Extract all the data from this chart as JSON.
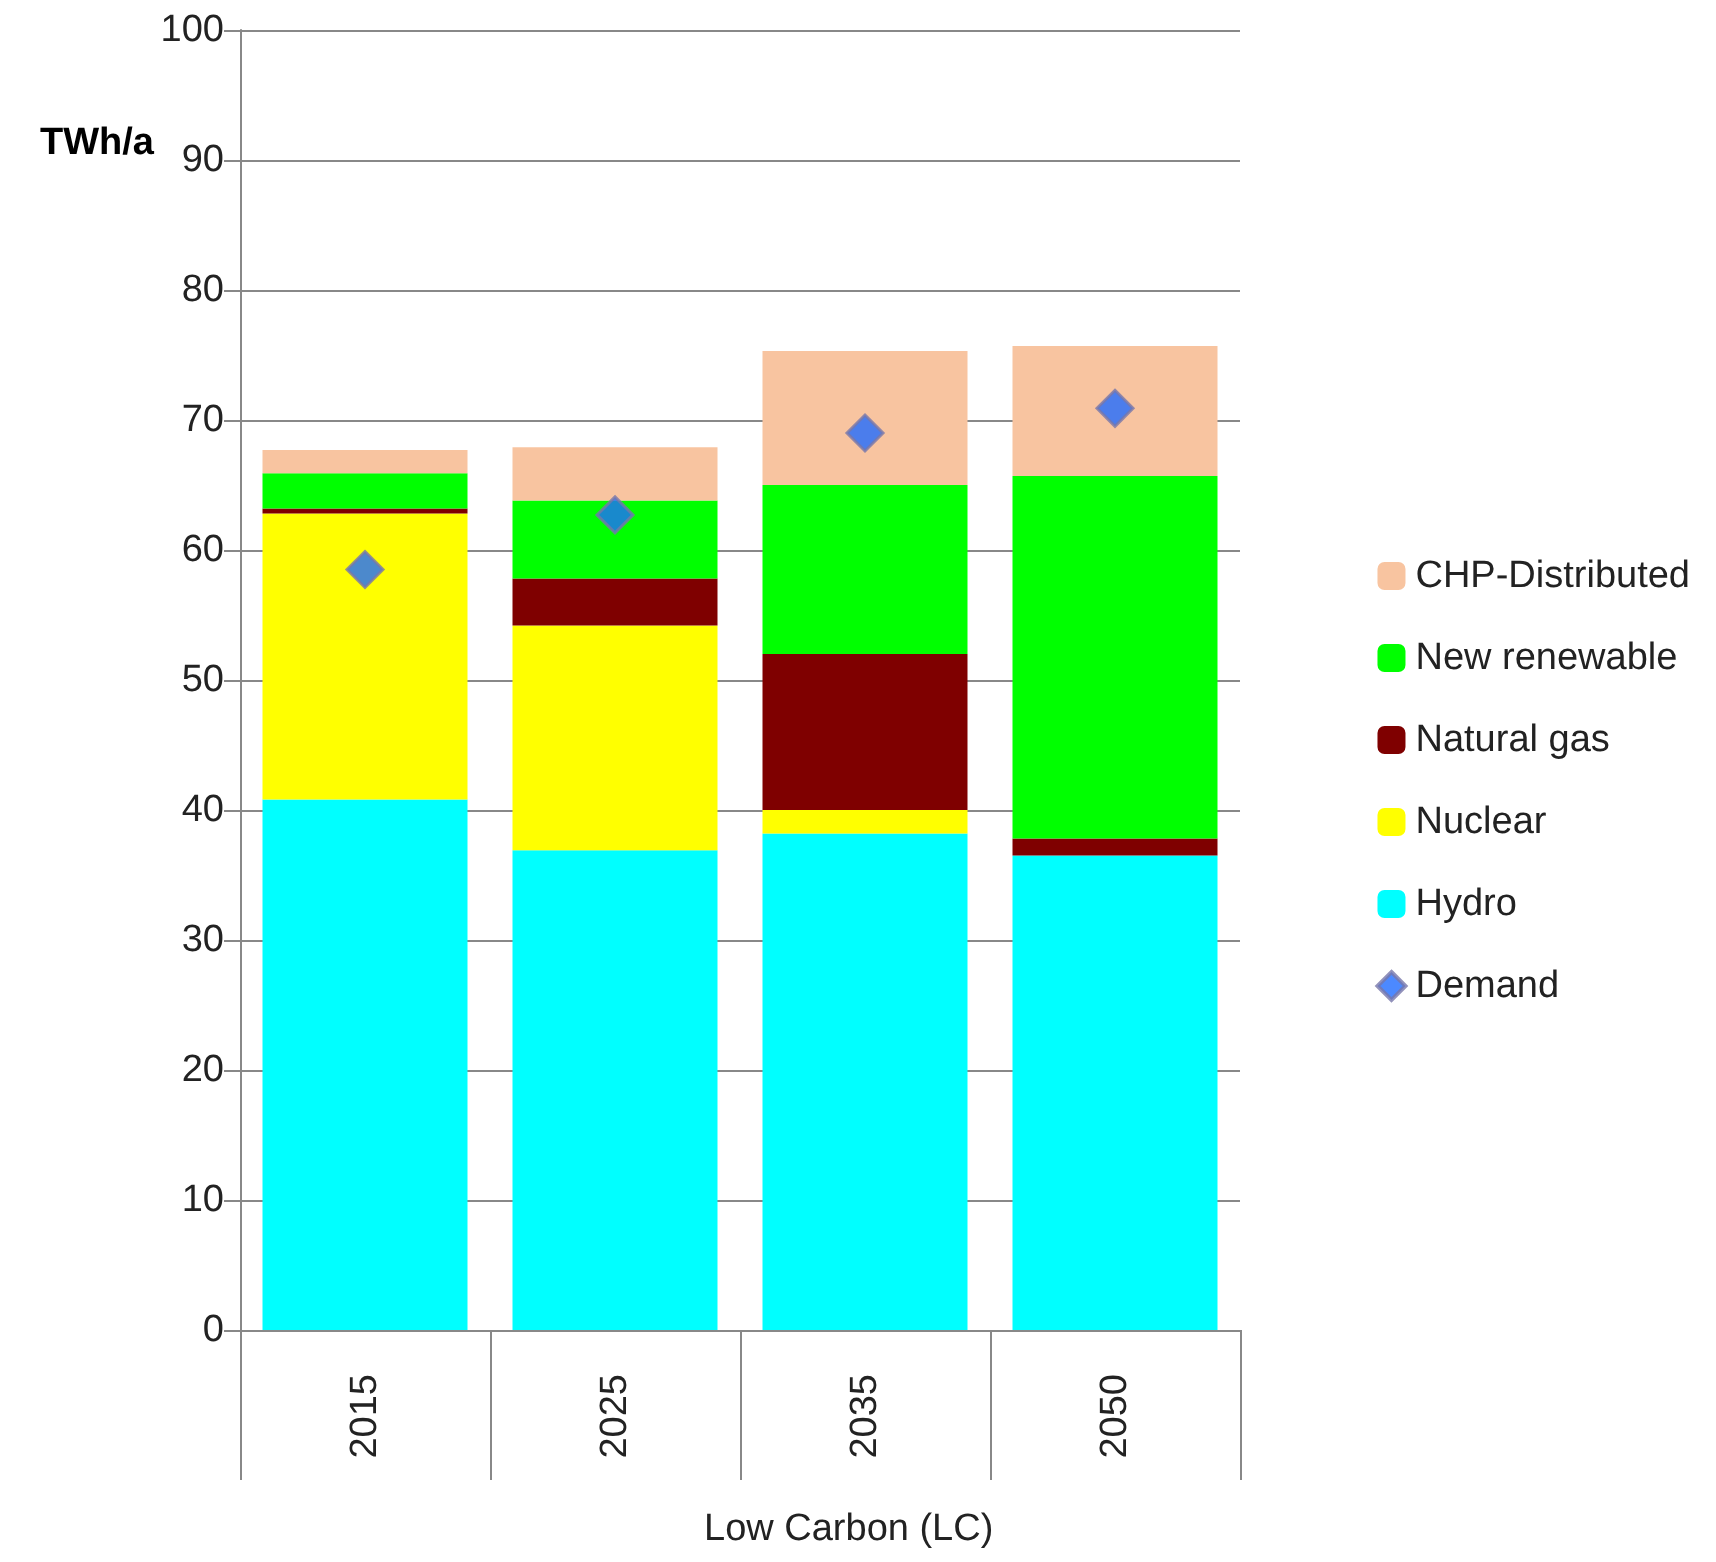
{
  "chart_data": {
    "type": "bar",
    "stacked": true,
    "ylabel": "TWh/a",
    "categories": [
      "2015",
      "2025",
      "2035",
      "2050"
    ],
    "series": [
      {
        "name": "Hydro",
        "color": "#00ffff",
        "values": [
          40.8,
          36.9,
          38.2,
          36.5
        ]
      },
      {
        "name": "Nuclear",
        "color": "#ffff00",
        "values": [
          22.0,
          17.3,
          1.8,
          0
        ]
      },
      {
        "name": "Natural gas",
        "color": "#7f0000",
        "values": [
          0.4,
          3.6,
          12.0,
          1.3
        ]
      },
      {
        "name": "New renewable",
        "color": "#00ff00",
        "values": [
          2.7,
          6.0,
          13.0,
          27.9
        ]
      },
      {
        "name": "CHP-Distributed",
        "color": "#f8c4a0",
        "values": [
          1.8,
          4.1,
          10.3,
          10.0
        ]
      },
      {
        "name": "Demand",
        "type": "scatter",
        "color": "#1f6bff",
        "values": [
          58.5,
          62.7,
          69.0,
          70.9
        ]
      }
    ],
    "marker": "diamond",
    "ylim": [
      0,
      100
    ],
    "yticks": [
      0,
      10,
      20,
      30,
      40,
      50,
      60,
      70,
      80,
      90,
      100
    ],
    "grid": "y",
    "legend": "right",
    "annotations": [
      "Low Carbon (LC)"
    ]
  }
}
